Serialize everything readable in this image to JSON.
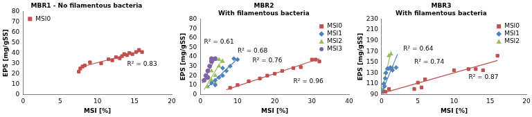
{
  "chart_data": [
    {
      "type": "scatter",
      "title": [
        "MBR1 - No filamentous bacteria"
      ],
      "xlabel": "MSI [%]",
      "ylabel": "EPS [mg/gSS]",
      "xlim": [
        0,
        20
      ],
      "xticks": [
        0,
        5,
        10,
        15,
        20
      ],
      "ylim": [
        0,
        80
      ],
      "yticks": [
        0,
        10,
        20,
        30,
        40,
        50,
        60,
        70,
        80
      ],
      "grid": false,
      "legend": "upper left",
      "series": [
        {
          "name": "MSI0",
          "color": "#c0504d",
          "marker": "square",
          "x": [
            7.5,
            7.7,
            8.0,
            8.3,
            9.0,
            10.5,
            11.5,
            12.0,
            12.5,
            13.0,
            13.3,
            13.6,
            14.0,
            14.3,
            14.7,
            15.2,
            15.6,
            16.0
          ],
          "values": [
            22,
            25,
            27,
            28,
            31,
            30,
            34,
            33,
            36,
            35,
            37,
            39,
            38,
            40,
            39,
            41,
            43,
            41
          ],
          "trend": {
            "x": [
              7.5,
              16
            ],
            "values": [
              26,
              42
            ]
          }
        }
      ],
      "annotations": [
        {
          "text": "R² = 0.83",
          "x": 14,
          "y": 29
        }
      ]
    },
    {
      "type": "scatter",
      "title": [
        "MBR2",
        "With filamentous bacteria"
      ],
      "xlabel": "MSI [%]",
      "ylabel": "EPS [mg/gSS]",
      "xlim": [
        0,
        40
      ],
      "xticks": [
        0,
        10,
        20,
        30,
        40
      ],
      "ylim": [
        0,
        80
      ],
      "yticks": [
        0,
        10,
        20,
        30,
        40,
        50,
        60,
        70,
        80
      ],
      "grid": false,
      "legend": "upper right",
      "series": [
        {
          "name": "MSI0",
          "color": "#c0504d",
          "marker": "square",
          "x": [
            8,
            10,
            13,
            16,
            18,
            20,
            22,
            25,
            27,
            30,
            31,
            32
          ],
          "values": [
            7,
            10,
            14,
            17,
            20,
            22,
            25,
            28,
            29,
            37,
            37,
            35
          ],
          "trend": {
            "x": [
              7,
              32
            ],
            "values": [
              5,
              38
            ]
          }
        },
        {
          "name": "MSI1",
          "color": "#4f81bd",
          "marker": "diamond",
          "x": [
            3,
            4,
            4,
            5,
            6,
            6,
            7,
            8,
            9,
            10
          ],
          "values": [
            12,
            10,
            15,
            18,
            20,
            28,
            25,
            30,
            38,
            37
          ],
          "trend": {
            "x": [
              2,
              10
            ],
            "values": [
              8,
              38
            ]
          }
        },
        {
          "name": "MSI2",
          "color": "#9bbb59",
          "marker": "triangle",
          "x": [
            2,
            3,
            3,
            4,
            4,
            5,
            5,
            6
          ],
          "values": [
            8,
            15,
            25,
            12,
            20,
            30,
            37,
            35
          ],
          "trend": {
            "x": [
              1,
              6
            ],
            "values": [
              5,
              38
            ]
          }
        },
        {
          "name": "MSI3",
          "color": "#8064a2",
          "marker": "circle",
          "x": [
            1,
            1.5,
            2,
            2,
            2.5,
            3,
            3,
            4
          ],
          "values": [
            15,
            20,
            18,
            25,
            30,
            35,
            38,
            38
          ],
          "trend": {
            "x": [
              0.5,
              4
            ],
            "values": [
              12,
              38
            ]
          }
        }
      ],
      "annotations": [
        {
          "text": "R² = 0.61",
          "x": 1,
          "y": 56
        },
        {
          "text": "R² = 0.68",
          "x": 10,
          "y": 46
        },
        {
          "text": "R² = 0.76",
          "x": 14,
          "y": 36
        },
        {
          "text": "R² = 0.96",
          "x": 25,
          "y": 14
        }
      ]
    },
    {
      "type": "scatter",
      "title": [
        "MBR3",
        "With filamentous bacteria"
      ],
      "xlabel": "MSI [%]",
      "ylabel": "EPS [mg/gSS]",
      "xlim": [
        0,
        20
      ],
      "xticks": [
        0,
        5,
        10,
        15,
        20
      ],
      "ylim": [
        90,
        230
      ],
      "yticks": [
        90,
        110,
        130,
        150,
        170,
        190,
        210,
        230
      ],
      "grid": false,
      "legend": "upper right",
      "series": [
        {
          "name": "MSI0",
          "color": "#c0504d",
          "marker": "square",
          "x": [
            0.5,
            1,
            4.5,
            5,
            5.5,
            6,
            10,
            12,
            13,
            14,
            16
          ],
          "values": [
            95,
            100,
            100,
            112,
            103,
            118,
            135,
            137,
            137,
            135,
            162
          ],
          "trend": {
            "x": [
              0,
              16
            ],
            "values": [
              92,
              153
            ]
          }
        },
        {
          "name": "MSI1",
          "color": "#4f81bd",
          "marker": "diamond",
          "x": [
            0.2,
            0.3,
            0.4,
            0.5,
            0.6,
            0.8,
            1,
            1.2,
            1.5,
            2
          ],
          "values": [
            95,
            110,
            105,
            120,
            130,
            138,
            138,
            140,
            135,
            140
          ],
          "trend": {
            "x": [
              0,
              2.2
            ],
            "values": [
              93,
              165
            ]
          }
        },
        {
          "name": "MSI2",
          "color": "#9bbb59",
          "marker": "triangle",
          "x": [
            0.2,
            0.3,
            0.5,
            0.8,
            1,
            1.3,
            1.5
          ],
          "values": [
            100,
            110,
            130,
            138,
            162,
            165,
            140
          ],
          "trend": {
            "x": [
              0,
              1.3
            ],
            "values": [
              95,
              170
            ]
          }
        }
      ],
      "annotations": [
        {
          "text": "R² = 0.64",
          "x": 3,
          "y": 175
        },
        {
          "text": "R² = 0.74",
          "x": 4.5,
          "y": 150
        },
        {
          "text": "R² = 0.87",
          "x": 12,
          "y": 122
        }
      ]
    }
  ]
}
